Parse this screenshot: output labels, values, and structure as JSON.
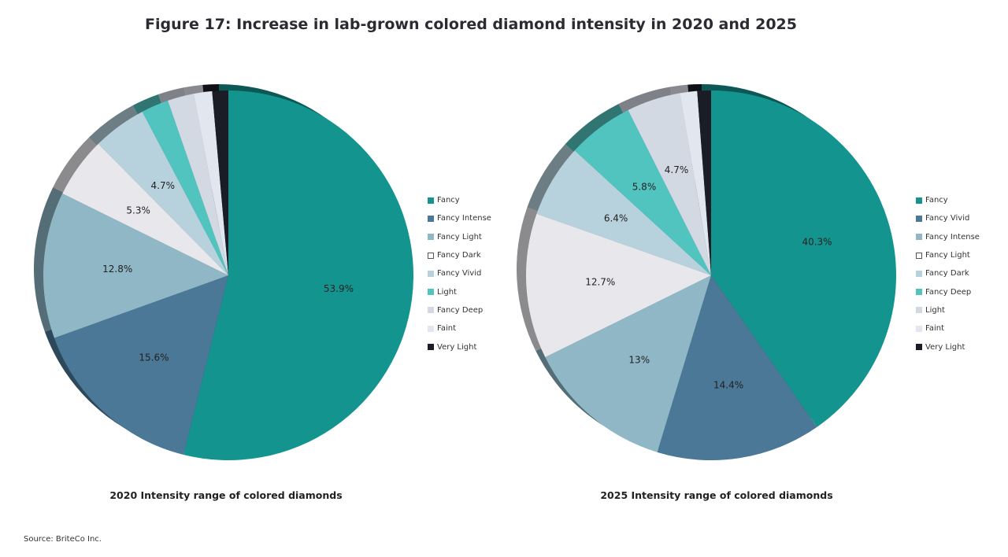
{
  "title": "Figure 17: Increase in lab-grown colored diamond intensity in 2020 and 2025",
  "source": "Source: BriteCo Inc.",
  "chart_data": [
    {
      "type": "pie",
      "caption": "2020 Intensity range of colored diamonds",
      "legend_position": "right",
      "slices": [
        {
          "name": "Fancy",
          "value": 53.9,
          "label": "53.9%",
          "color": "#14948f"
        },
        {
          "name": "Fancy Intense",
          "value": 15.6,
          "label": "15.6%",
          "color": "#4a7896"
        },
        {
          "name": "Fancy Light",
          "value": 12.8,
          "label": "12.8%",
          "color": "#8fb7c6"
        },
        {
          "name": "Fancy Dark",
          "value": 5.3,
          "label": "5.3%",
          "color": "#e8e8ec"
        },
        {
          "name": "Fancy Vivid",
          "value": 4.7,
          "label": "4.7%",
          "color": "#b7d1dd"
        },
        {
          "name": "Light",
          "value": 2.4,
          "label": "",
          "color": "#52c4c0"
        },
        {
          "name": "Fancy Deep",
          "value": 2.3,
          "label": "",
          "color": "#d3d9e3"
        },
        {
          "name": "Faint",
          "value": 1.6,
          "label": "",
          "color": "#e2e6ee"
        },
        {
          "name": "Very Light",
          "value": 1.4,
          "label": "",
          "color": "#1a1d26"
        }
      ]
    },
    {
      "type": "pie",
      "caption": "2025 Intensity range of colored diamonds",
      "legend_position": "right",
      "slices": [
        {
          "name": "Fancy",
          "value": 40.3,
          "label": "40.3%",
          "color": "#14948f"
        },
        {
          "name": "Fancy Vivid",
          "value": 14.4,
          "label": "14.4%",
          "color": "#4a7896"
        },
        {
          "name": "Fancy Intense",
          "value": 13,
          "label": "13%",
          "color": "#8fb7c6"
        },
        {
          "name": "Fancy Light",
          "value": 12.7,
          "label": "12.7%",
          "color": "#e8e8ec"
        },
        {
          "name": "Fancy Dark",
          "value": 6.4,
          "label": "6.4%",
          "color": "#b7d1dd"
        },
        {
          "name": "Fancy Deep",
          "value": 5.8,
          "label": "5.8%",
          "color": "#52c4c0"
        },
        {
          "name": "Light",
          "value": 4.7,
          "label": "4.7%",
          "color": "#d3d9e3"
        },
        {
          "name": "Faint",
          "value": 1.5,
          "label": "",
          "color": "#e2e6ee"
        },
        {
          "name": "Very Light",
          "value": 1.2,
          "label": "",
          "color": "#1a1d26"
        }
      ]
    }
  ]
}
